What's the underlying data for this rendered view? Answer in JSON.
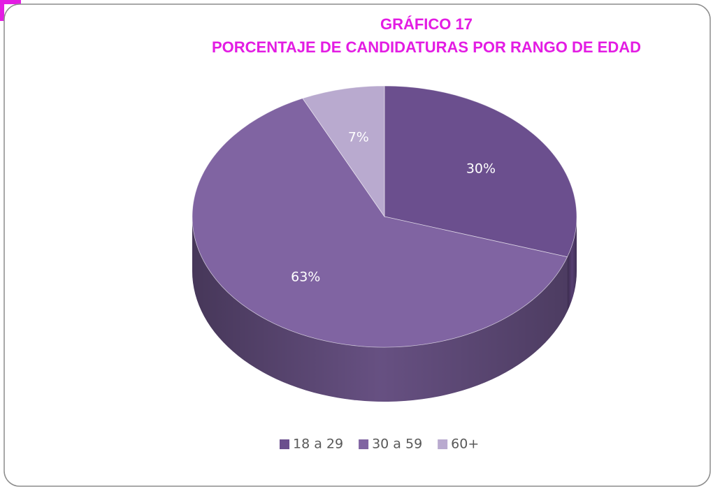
{
  "chart_data": {
    "type": "pie",
    "title": "GRÁFICO 17",
    "subtitle": "PORCENTAJE DE CANDIDATURAS POR RANGO DE EDAD",
    "categories": [
      "18 a 29",
      "30 a 59",
      "60+"
    ],
    "values": [
      30,
      63,
      7
    ],
    "value_labels": [
      "30%",
      "63%",
      "7%"
    ],
    "colors": [
      "#6b4f8e",
      "#8064a2",
      "#b9aacf"
    ],
    "legend": "bottom"
  }
}
